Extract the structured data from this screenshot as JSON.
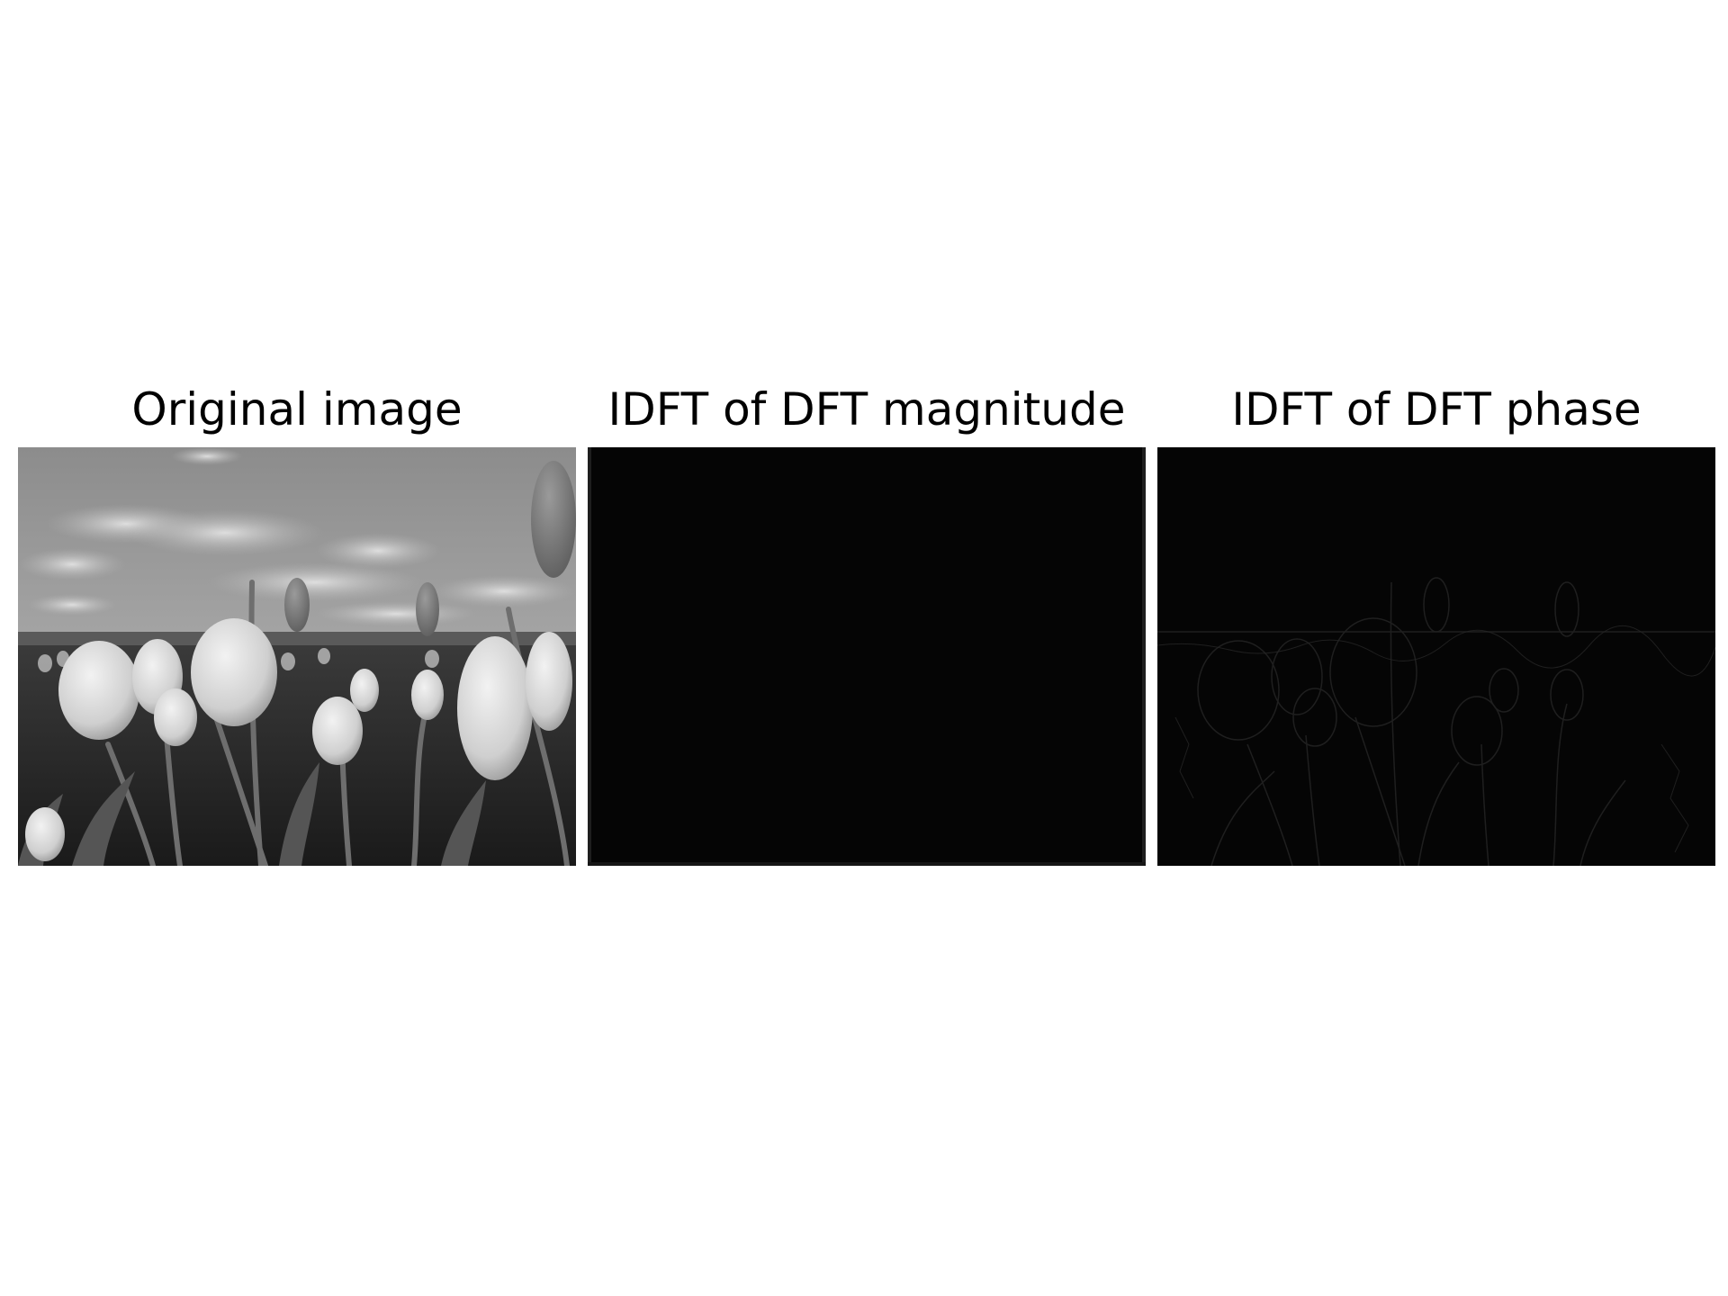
{
  "figure": {
    "panels": [
      {
        "title": "Original image"
      },
      {
        "title": "IDFT of DFT magnitude"
      },
      {
        "title": "IDFT of DFT phase"
      }
    ]
  }
}
